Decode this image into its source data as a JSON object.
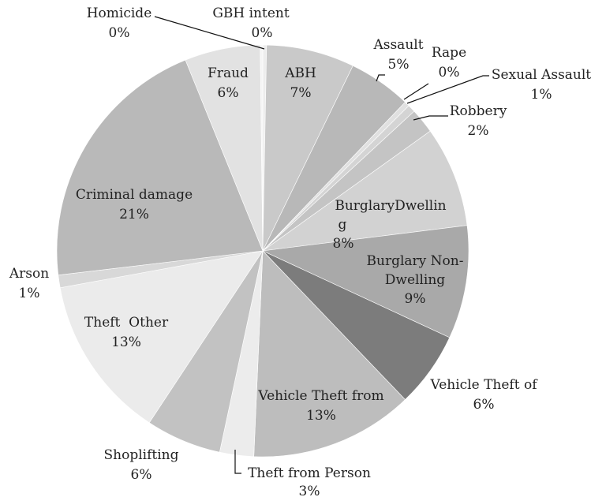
{
  "chart_data": {
    "type": "pie",
    "title": "",
    "slices": [
      {
        "name": "GBH intent",
        "value": 0.3,
        "label": "0%",
        "color": "#ededed"
      },
      {
        "name": "ABH",
        "value": 7,
        "label": "7%",
        "color": "#c9c9c9"
      },
      {
        "name": "Assault",
        "value": 5,
        "label": "5%",
        "color": "#b8b8b8"
      },
      {
        "name": "Rape",
        "value": 0.4,
        "label": "0%",
        "color": "#e0e0e0"
      },
      {
        "name": "Sexual Assault",
        "value": 0.6,
        "label": "1%",
        "color": "#d4d4d4"
      },
      {
        "name": "Robbery",
        "value": 2,
        "label": "2%",
        "color": "#c4c4c4"
      },
      {
        "name": "BurglaryDwelling",
        "value": 8,
        "label": "8%",
        "color": "#d2d2d2"
      },
      {
        "name": "Burglary Non-Dwelling",
        "value": 9,
        "label": "9%",
        "color": "#a9a9a9"
      },
      {
        "name": "Vehicle Theft of",
        "value": 6,
        "label": "6%",
        "color": "#7c7c7c"
      },
      {
        "name": "Vehicle Theft from",
        "value": 13,
        "label": "13%",
        "color": "#bdbdbd"
      },
      {
        "name": "Theft from Person",
        "value": 2.7,
        "label": "3%",
        "color": "#ececec"
      },
      {
        "name": "Shoplifting",
        "value": 6,
        "label": "6%",
        "color": "#c2c2c2"
      },
      {
        "name": "Theft Other",
        "value": 13,
        "label": "13%",
        "color": "#ebebeb"
      },
      {
        "name": "Arson",
        "value": 1,
        "label": "1%",
        "color": "#d8d8d8"
      },
      {
        "name": "Criminal damage",
        "value": 21,
        "label": "21%",
        "color": "#b9b9b9"
      },
      {
        "name": "Fraud",
        "value": 6,
        "label": "6%",
        "color": "#e2e2e2"
      },
      {
        "name": "Homicide",
        "value": 0.2,
        "label": "0%",
        "color": "#f5f5f5"
      }
    ]
  },
  "labels": {
    "gbh_name": "GBH intent",
    "gbh_pct": "0%",
    "homicide_name": "Homicide",
    "homicide_pct": "0%",
    "fraud_name": "Fraud",
    "fraud_pct": "6%",
    "abh_name": "ABH",
    "abh_pct": "7%",
    "assault_name": "Assault",
    "assault_pct": "5%",
    "rape_name": "Rape",
    "rape_pct": "0%",
    "sexual_name": "Sexual Assault",
    "sexual_pct": "1%",
    "robbery_name": "Robbery",
    "robbery_pct": "2%",
    "burg_dw_line1": "BurglaryDwellin",
    "burg_dw_line2": "g",
    "burg_dw_pct": "8%",
    "burg_nd_line1": "Burglary Non-",
    "burg_nd_line2": "Dwelling",
    "burg_nd_pct": "9%",
    "veh_of_name": "Vehicle Theft of",
    "veh_of_pct": "6%",
    "veh_from_name": "Vehicle Theft from",
    "veh_from_pct": "13%",
    "theft_person_name": "Theft from Person",
    "theft_person_pct": "3%",
    "shoplifting_name": "Shoplifting",
    "shoplifting_pct": "6%",
    "theft_other_name": "Theft  Other",
    "theft_other_pct": "13%",
    "arson_name": "Arson",
    "arson_pct": "1%",
    "criminal_name": "Criminal damage",
    "criminal_pct": "21%"
  }
}
